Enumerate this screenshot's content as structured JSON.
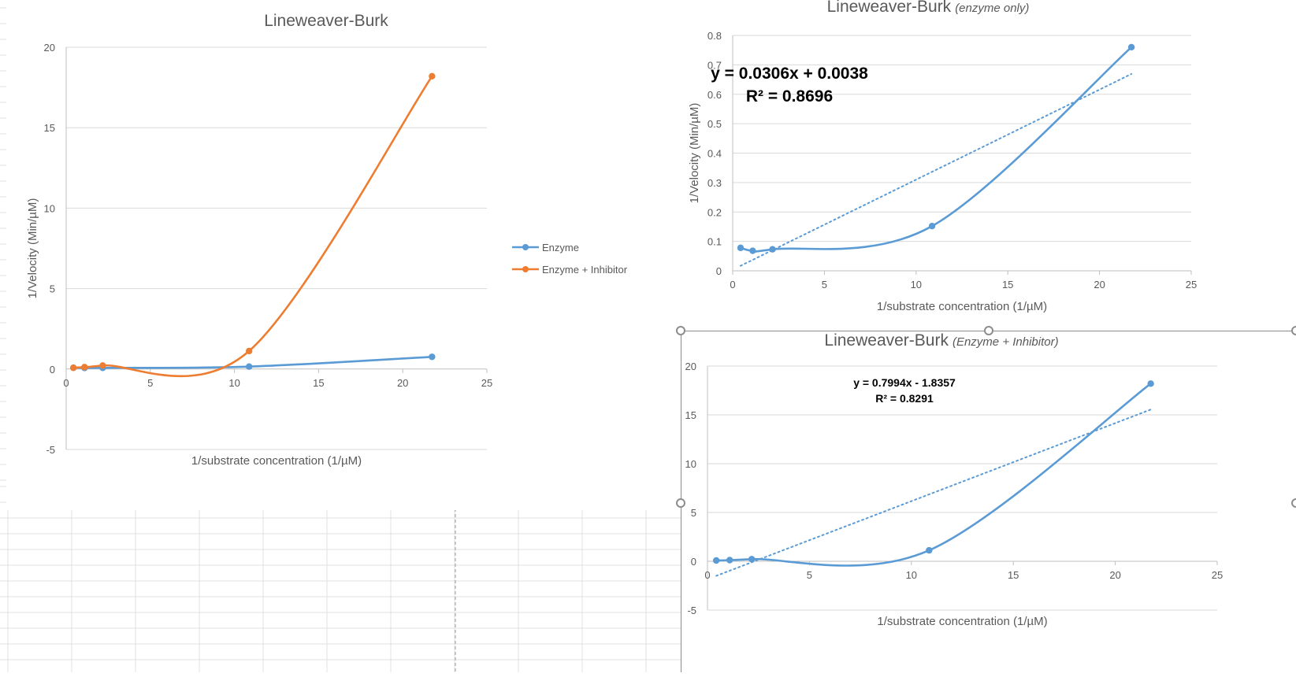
{
  "colors": {
    "enzyme": "#5b9bd5",
    "inhibitor": "#ed7d31",
    "gridline": "#d9d9d9",
    "axis": "#bfbfbf",
    "text": "#595959",
    "sheet_grid": "#e1e1e1"
  },
  "chart_data": [
    {
      "id": "combined",
      "type": "scatter",
      "title": "Lineweaver-Burk",
      "xlabel": "1/substrate concentration (1/µM)",
      "ylabel": "1/Velocity (Min/µM)",
      "xlim": [
        0,
        25
      ],
      "ylim": [
        -5,
        20
      ],
      "xticks": [
        "0",
        "5",
        "10",
        "15",
        "20",
        "25"
      ],
      "yticks": [
        "-5",
        "0",
        "5",
        "10",
        "15",
        "20"
      ],
      "legend_position": "right",
      "series": [
        {
          "name": "Enzyme",
          "color": "#5b9bd5",
          "x": [
            0.43,
            1.09,
            2.17,
            10.87,
            21.74
          ],
          "y": [
            0.078,
            0.068,
            0.073,
            0.152,
            0.76
          ]
        },
        {
          "name": "Enzyme + Inhibitor",
          "color": "#ed7d31",
          "x": [
            0.43,
            1.09,
            2.17,
            10.87,
            21.74
          ],
          "y": [
            0.08,
            0.12,
            0.22,
            1.12,
            18.2
          ]
        }
      ]
    },
    {
      "id": "enzyme_only",
      "type": "scatter",
      "title": "Lineweaver-Burk",
      "title_suffix": "(enzyme only)",
      "xlabel": "1/substrate concentration (1/µM)",
      "ylabel": "1/Velocity (Min/µM)",
      "xlim": [
        0,
        25
      ],
      "ylim": [
        0,
        0.8
      ],
      "xticks": [
        "0",
        "5",
        "10",
        "15",
        "20",
        "25"
      ],
      "yticks": [
        "0",
        "0.1",
        "0.2",
        "0.3",
        "0.4",
        "0.5",
        "0.6",
        "0.7",
        "0.8"
      ],
      "series": [
        {
          "name": "Enzyme",
          "color": "#5b9bd5",
          "x": [
            0.43,
            1.09,
            2.17,
            10.87,
            21.74
          ],
          "y": [
            0.078,
            0.068,
            0.073,
            0.152,
            0.76
          ]
        }
      ],
      "trendline": {
        "slope": 0.0306,
        "intercept": 0.0038,
        "equation": "y = 0.0306x + 0.0038",
        "r2": "R² = 0.8696"
      }
    },
    {
      "id": "enzyme_inhibitor",
      "type": "scatter",
      "title": "Lineweaver-Burk",
      "title_suffix": "(Enzyme + Inhibitor)",
      "xlabel": "1/substrate concentration (1/µM)",
      "ylabel": "1/Velocity (Min/µM)",
      "xlim": [
        0,
        25
      ],
      "ylim": [
        -5,
        20
      ],
      "xticks": [
        "0",
        "5",
        "10",
        "15",
        "20",
        "25"
      ],
      "yticks": [
        "-5",
        "0",
        "5",
        "10",
        "15",
        "20"
      ],
      "series": [
        {
          "name": "Enzyme + Inhibitor",
          "color": "#5b9bd5",
          "x": [
            0.43,
            1.09,
            2.17,
            10.87,
            21.74
          ],
          "y": [
            0.08,
            0.12,
            0.22,
            1.12,
            18.2
          ]
        }
      ],
      "trendline": {
        "slope": 0.7994,
        "intercept": -1.8357,
        "equation": "y = 0.7994x - 1.8357",
        "r2": "R² = 0.8291"
      }
    }
  ]
}
